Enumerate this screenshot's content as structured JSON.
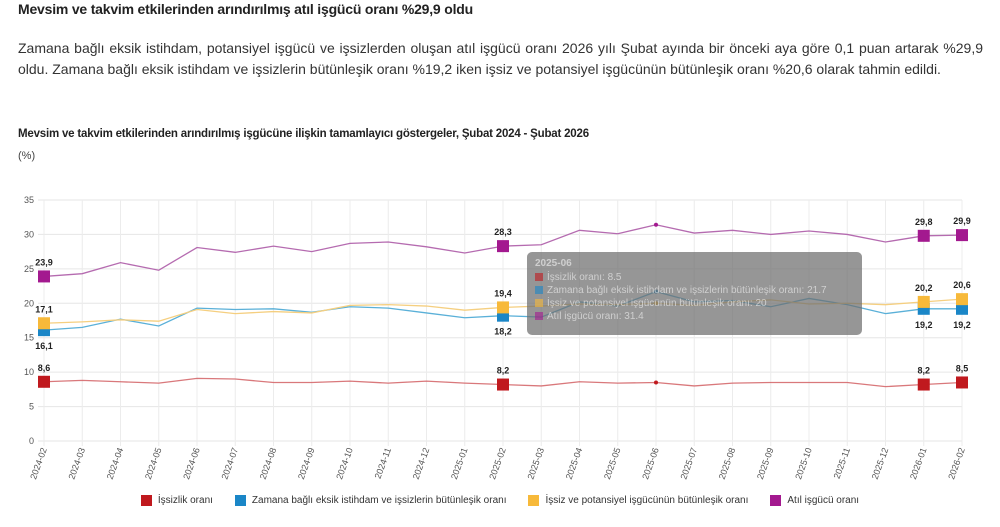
{
  "header": {
    "title": "Mevsim ve takvim etkilerinden arındırılmış atıl işgücü oranı %29,9 oldu",
    "paragraph": "Zamana bağlı eksik istihdam, potansiyel işgücü ve işsizlerden oluşan atıl işgücü oranı 2026 yılı Şubat ayında bir önceki aya göre 0,1 puan artarak %29,9 oldu. Zamana bağlı eksik istihdam ve işsizlerin bütünleşik oranı %19,2 iken işsiz ve potansiyel işgücünün bütünleşik oranı %20,6 olarak tahmin edildi."
  },
  "tooltip": {
    "title": "2025-06",
    "lines": [
      "İşsizlik oranı: 8.5",
      "Zamana bağlı eksik istihdam ve işsizlerin bütünleşik oranı: 21.7",
      "İşsiz ve potansiyel işgücünün bütünleşik oranı: 20",
      "Atıl işgücü oranı: 31.4"
    ]
  },
  "chart_data": {
    "type": "line",
    "title": "Mevsim ve takvim etkilerinden arındırılmış işgücüne ilişkin tamamlayıcı göstergeler, Şubat 2024 - Şubat 2026",
    "ylabel": "(%)",
    "xlabel": "",
    "ylim": [
      0,
      35
    ],
    "yticks": [
      "0",
      "5",
      "10",
      "15",
      "20",
      "25",
      "30",
      "35"
    ],
    "grid": true,
    "legend": "bottom",
    "categories": [
      "2024-02",
      "2024-03",
      "2024-04",
      "2024-05",
      "2024-06",
      "2024-07",
      "2024-08",
      "2024-09",
      "2024-10",
      "2024-11",
      "2024-12",
      "2025-01",
      "2025-02",
      "2025-03",
      "2025-04",
      "2025-05",
      "2025-06",
      "2025-07",
      "2025-08",
      "2025-09",
      "2025-10",
      "2025-11",
      "2025-12",
      "2026-01",
      "2026-02"
    ],
    "series": [
      {
        "name": "İşsizlik oranı",
        "color": "#c0191e",
        "line_color": "#d9787b",
        "values": [
          8.6,
          8.8,
          8.6,
          8.4,
          9.1,
          9.0,
          8.5,
          8.5,
          8.7,
          8.4,
          8.7,
          8.4,
          8.2,
          8.0,
          8.6,
          8.4,
          8.5,
          8.0,
          8.4,
          8.5,
          8.5,
          8.5,
          7.9,
          8.2,
          8.5
        ],
        "labels": {
          "0": "8,6",
          "12": "8,2",
          "23": "8,2",
          "24": "8,5"
        },
        "label_pos": "above"
      },
      {
        "name": "Zamana bağlı eksik istihdam ve işsizlerin bütünleşik oranı",
        "color": "#1a86c7",
        "line_color": "#5ab0d8",
        "values": [
          16.1,
          16.5,
          17.7,
          16.7,
          19.3,
          19.1,
          19.2,
          18.7,
          19.5,
          19.3,
          18.6,
          17.9,
          18.2,
          18.0,
          20.2,
          19.6,
          21.7,
          20.2,
          20.4,
          19.5,
          20.7,
          19.8,
          18.5,
          19.2,
          19.2
        ],
        "labels": {
          "0": "16,1",
          "12": "18,2",
          "23": "19,2",
          "24": "19,2"
        },
        "label_pos": "below"
      },
      {
        "name": "İşsiz ve potansiyel işgücünün bütünleşik oranı",
        "color": "#f7b93a",
        "line_color": "#f5cf80",
        "values": [
          17.1,
          17.3,
          17.6,
          17.4,
          19.1,
          18.5,
          18.8,
          18.6,
          19.7,
          19.8,
          19.6,
          19.0,
          19.4,
          19.6,
          19.9,
          19.8,
          20.0,
          19.7,
          20.2,
          20.5,
          19.9,
          20.0,
          19.8,
          20.2,
          20.6
        ],
        "labels": {
          "0": "17,1",
          "12": "19,4",
          "23": "20,2",
          "24": "20,6"
        },
        "label_pos": "above"
      },
      {
        "name": "Atıl işgücü oranı",
        "color": "#a3198f",
        "line_color": "#b56bb0",
        "values": [
          23.9,
          24.3,
          25.9,
          24.8,
          28.1,
          27.4,
          28.3,
          27.5,
          28.7,
          28.9,
          28.2,
          27.3,
          28.3,
          28.5,
          30.6,
          30.1,
          31.4,
          30.2,
          30.6,
          30.0,
          30.5,
          30.0,
          28.9,
          29.8,
          29.9
        ],
        "labels": {
          "0": "23,9",
          "12": "28,3",
          "23": "29,8",
          "24": "29,9"
        },
        "label_pos": "above"
      }
    ]
  }
}
